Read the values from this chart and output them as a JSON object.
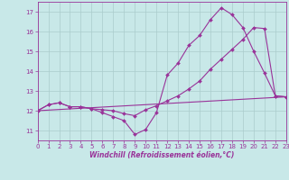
{
  "bg_color": "#c8e8e8",
  "line_color": "#993399",
  "grid_color": "#aacccc",
  "xlabel": "Windchill (Refroidissement éolien,°C)",
  "xlim": [
    0,
    23
  ],
  "ylim": [
    10.5,
    17.5
  ],
  "yticks": [
    11,
    12,
    13,
    14,
    15,
    16,
    17
  ],
  "xticks": [
    0,
    1,
    2,
    3,
    4,
    5,
    6,
    7,
    8,
    9,
    10,
    11,
    12,
    13,
    14,
    15,
    16,
    17,
    18,
    19,
    20,
    21,
    22,
    23
  ],
  "line1_x": [
    0,
    1,
    2,
    3,
    4,
    5,
    6,
    7,
    8,
    9,
    10,
    11,
    12,
    13,
    14,
    15,
    16,
    17,
    18,
    19,
    20,
    21,
    22,
    23
  ],
  "line1_y": [
    12.0,
    12.3,
    12.4,
    12.2,
    12.2,
    12.1,
    11.9,
    11.7,
    11.5,
    10.8,
    11.05,
    11.9,
    13.8,
    14.4,
    15.3,
    15.8,
    16.6,
    17.2,
    16.85,
    16.2,
    15.0,
    13.9,
    12.75,
    12.7
  ],
  "line2_x": [
    0,
    1,
    2,
    3,
    4,
    5,
    6,
    7,
    8,
    9,
    10,
    11,
    12,
    13,
    14,
    15,
    16,
    17,
    18,
    19,
    20,
    21,
    22,
    23
  ],
  "line2_y": [
    12.0,
    12.3,
    12.4,
    12.2,
    12.2,
    12.1,
    12.05,
    12.0,
    11.85,
    11.75,
    12.05,
    12.25,
    12.5,
    12.75,
    13.1,
    13.5,
    14.1,
    14.6,
    15.1,
    15.6,
    16.2,
    16.15,
    12.75,
    12.7
  ],
  "line3_x": [
    0,
    23
  ],
  "line3_y": [
    12.0,
    12.7
  ]
}
